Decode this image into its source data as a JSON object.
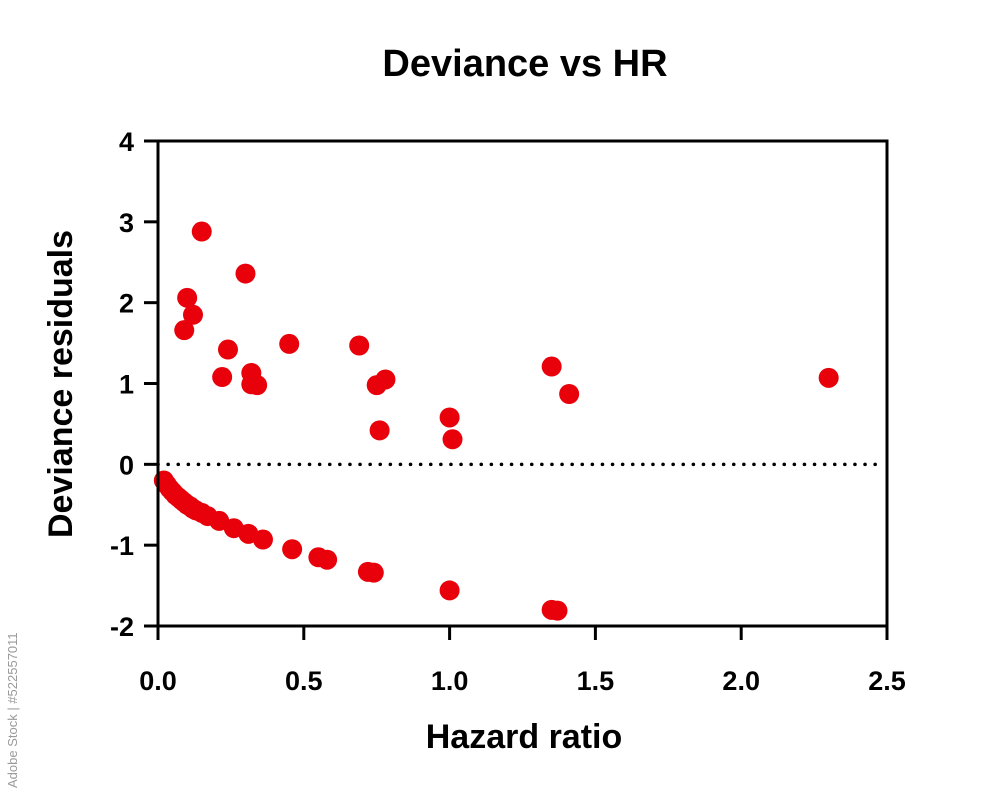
{
  "chart_data": {
    "type": "scatter",
    "title": "Deviance vs HR",
    "xlabel": "Hazard ratio",
    "ylabel": "Deviance residuals",
    "xlim": [
      0,
      2.5
    ],
    "ylim": [
      -2,
      4
    ],
    "xticks": [
      "0.0",
      "0.5",
      "1.0",
      "1.5",
      "2.0",
      "2.5"
    ],
    "xtick_values": [
      0,
      0.5,
      1.0,
      1.5,
      2.0,
      2.5
    ],
    "yticks": [
      "-2",
      "-1",
      "0",
      "1",
      "2",
      "3",
      "4"
    ],
    "ytick_values": [
      -2,
      -1,
      0,
      1,
      2,
      3,
      4
    ],
    "reference_line": {
      "y": 0,
      "style": "dotted"
    },
    "grid": false,
    "marker_color": "#e8000b",
    "series": [
      {
        "points": [
          [
            0.15,
            2.88
          ],
          [
            0.3,
            2.36
          ],
          [
            0.1,
            2.06
          ],
          [
            0.12,
            1.85
          ],
          [
            0.09,
            1.66
          ],
          [
            0.24,
            1.42
          ],
          [
            0.45,
            1.49
          ],
          [
            0.69,
            1.47
          ],
          [
            0.22,
            1.08
          ],
          [
            0.32,
            1.13
          ],
          [
            0.32,
            0.99
          ],
          [
            0.34,
            0.98
          ],
          [
            0.75,
            0.98
          ],
          [
            0.78,
            1.05
          ],
          [
            0.76,
            0.42
          ],
          [
            1.0,
            0.58
          ],
          [
            1.01,
            0.31
          ],
          [
            1.35,
            1.21
          ],
          [
            1.41,
            0.87
          ],
          [
            2.3,
            1.07
          ],
          [
            0.02,
            -0.2
          ],
          [
            0.03,
            -0.25
          ],
          [
            0.04,
            -0.3
          ],
          [
            0.05,
            -0.34
          ],
          [
            0.06,
            -0.38
          ],
          [
            0.07,
            -0.41
          ],
          [
            0.08,
            -0.44
          ],
          [
            0.09,
            -0.47
          ],
          [
            0.1,
            -0.5
          ],
          [
            0.11,
            -0.52
          ],
          [
            0.12,
            -0.55
          ],
          [
            0.13,
            -0.57
          ],
          [
            0.15,
            -0.6
          ],
          [
            0.17,
            -0.64
          ],
          [
            0.21,
            -0.7
          ],
          [
            0.26,
            -0.79
          ],
          [
            0.31,
            -0.86
          ],
          [
            0.36,
            -0.93
          ],
          [
            0.46,
            -1.05
          ],
          [
            0.55,
            -1.15
          ],
          [
            0.58,
            -1.18
          ],
          [
            0.72,
            -1.33
          ],
          [
            0.74,
            -1.34
          ],
          [
            1.0,
            -1.56
          ],
          [
            1.35,
            -1.8
          ],
          [
            1.37,
            -1.81
          ]
        ]
      }
    ]
  },
  "watermark": {
    "text": "Adobe Stock | #522557011"
  }
}
